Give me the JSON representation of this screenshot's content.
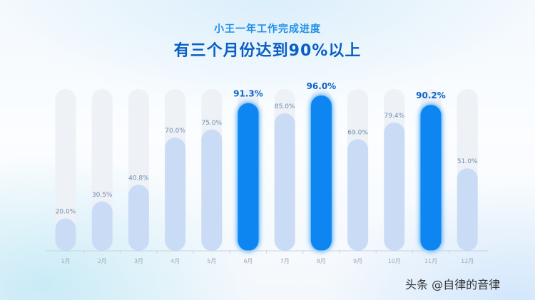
{
  "header": {
    "subtitle": "小王一年工作完成进度",
    "title": "有三个月份达到90%以上"
  },
  "watermark": "头条 @自律的音律",
  "colors": {
    "track": "#eef1f6",
    "fill": "#cadcf5",
    "highlight": "#0c86f2",
    "label": "#6f8fae",
    "highlight_label": "#0b64c9",
    "axis": "#c7d3df"
  },
  "chart_data": {
    "type": "bar",
    "categories": [
      "1月",
      "2月",
      "3月",
      "4月",
      "5月",
      "6月",
      "7月",
      "8月",
      "9月",
      "10月",
      "11月",
      "12月"
    ],
    "values": [
      20.0,
      30.5,
      40.8,
      70.0,
      75.0,
      91.3,
      85.0,
      96.0,
      69.0,
      79.4,
      90.2,
      51.0
    ],
    "value_labels": [
      "20.0%",
      "30.5%",
      "40.8%",
      "70.0%",
      "75.0%",
      "91.3%",
      "85.0%",
      "96.0%",
      "69.0%",
      "79.4%",
      "90.2%",
      "51.0%"
    ],
    "highlighted": [
      "6月",
      "8月",
      "11月"
    ],
    "title": "小王一年工作完成进度",
    "subtitle": "有三个月份达到90%以上",
    "ylim": [
      0,
      100
    ],
    "grid": false
  }
}
